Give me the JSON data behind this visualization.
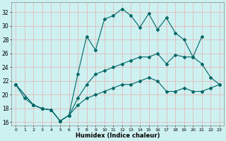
{
  "xlabel": "Humidex (Indice chaleur)",
  "bg_color": "#cdf0f0",
  "grid_color": "#e8b0b0",
  "line_color": "#006666",
  "xlim": [
    -0.5,
    23.5
  ],
  "ylim": [
    15.5,
    33.5
  ],
  "xticks": [
    0,
    1,
    2,
    3,
    4,
    5,
    6,
    7,
    8,
    9,
    10,
    11,
    12,
    13,
    14,
    15,
    16,
    17,
    18,
    19,
    20,
    21,
    22,
    23
  ],
  "yticks": [
    16,
    18,
    20,
    22,
    24,
    26,
    28,
    30,
    32
  ],
  "series": [
    {
      "x": [
        0,
        1,
        2,
        3,
        4,
        5,
        6,
        7,
        8,
        9,
        10,
        11,
        12,
        13,
        14,
        15,
        16,
        17,
        18,
        19,
        20,
        21
      ],
      "y": [
        21.5,
        19.5,
        18.5,
        18.0,
        17.8,
        16.2,
        17.0,
        23.0,
        28.5,
        26.5,
        31.0,
        31.5,
        32.5,
        31.5,
        29.8,
        31.8,
        29.5,
        31.2,
        29.0,
        28.0,
        25.5,
        28.5
      ]
    },
    {
      "x": [
        0,
        2,
        3,
        4,
        5,
        6,
        7,
        8,
        9,
        10,
        11,
        12,
        13,
        14,
        15,
        16,
        17,
        18,
        19,
        20,
        21,
        22,
        23
      ],
      "y": [
        21.5,
        18.5,
        18.0,
        17.8,
        16.2,
        17.0,
        19.5,
        21.5,
        23.0,
        23.5,
        24.0,
        24.5,
        25.0,
        25.5,
        25.5,
        26.0,
        24.5,
        25.8,
        25.5,
        25.5,
        24.5,
        22.5,
        21.5
      ]
    },
    {
      "x": [
        0,
        2,
        3,
        4,
        5,
        6,
        7,
        8,
        9,
        10,
        11,
        12,
        13,
        14,
        15,
        16,
        17,
        18,
        19,
        20,
        21,
        22,
        23
      ],
      "y": [
        21.5,
        18.5,
        18.0,
        17.8,
        16.2,
        17.0,
        18.5,
        19.5,
        20.0,
        20.5,
        21.0,
        21.5,
        21.5,
        22.0,
        22.5,
        22.0,
        20.5,
        20.5,
        21.0,
        20.5,
        20.5,
        21.0,
        21.5
      ]
    }
  ]
}
